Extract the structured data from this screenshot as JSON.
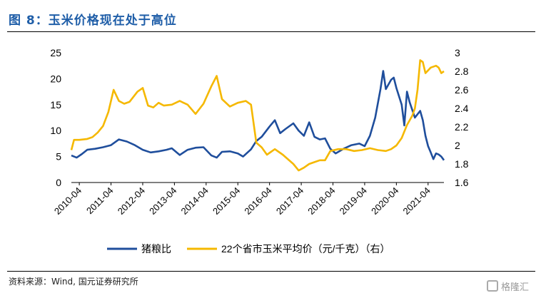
{
  "figure": {
    "title": "图 8：玉米价格现在处于高位",
    "source": "资料来源：Wind, 国元证券研究所",
    "watermark": "格隆汇"
  },
  "chart_data": {
    "type": "line",
    "x_ticks": [
      "2010-04",
      "2011-04",
      "2012-04",
      "2013-04",
      "2014-04",
      "2015-04",
      "2016-04",
      "2017-04",
      "2018-04",
      "2019-04",
      "2020-04",
      "2021-04"
    ],
    "y_left": {
      "min": 0,
      "max": 25,
      "ticks": [
        0,
        5,
        10,
        15,
        20,
        25
      ]
    },
    "y_right": {
      "min": 1.6,
      "max": 3.0,
      "ticks": [
        "1.6",
        "1.8",
        "2",
        "2.2",
        "2.4",
        "2.6",
        "2.8",
        "3"
      ]
    },
    "series": [
      {
        "name": "猪粮比",
        "axis": "left",
        "color": "#1f4e9c",
        "points": [
          [
            "2010-01",
            5.2
          ],
          [
            "2010-03",
            4.8
          ],
          [
            "2010-05",
            5.5
          ],
          [
            "2010-07",
            6.3
          ],
          [
            "2010-10",
            6.5
          ],
          [
            "2011-01",
            6.8
          ],
          [
            "2011-04",
            7.2
          ],
          [
            "2011-07",
            8.3
          ],
          [
            "2011-10",
            7.9
          ],
          [
            "2012-01",
            7.2
          ],
          [
            "2012-04",
            6.3
          ],
          [
            "2012-07",
            5.8
          ],
          [
            "2012-10",
            6.0
          ],
          [
            "2013-01",
            6.3
          ],
          [
            "2013-03",
            6.6
          ],
          [
            "2013-06",
            5.3
          ],
          [
            "2013-09",
            6.3
          ],
          [
            "2013-12",
            6.7
          ],
          [
            "2014-03",
            6.8
          ],
          [
            "2014-06",
            5.2
          ],
          [
            "2014-08",
            4.8
          ],
          [
            "2014-10",
            5.9
          ],
          [
            "2015-01",
            6.0
          ],
          [
            "2015-04",
            5.6
          ],
          [
            "2015-06",
            5.0
          ],
          [
            "2015-09",
            6.4
          ],
          [
            "2015-11",
            8.0
          ],
          [
            "2016-01",
            8.8
          ],
          [
            "2016-04",
            10.8
          ],
          [
            "2016-06",
            12.0
          ],
          [
            "2016-08",
            9.5
          ],
          [
            "2016-10",
            10.3
          ],
          [
            "2017-01",
            11.4
          ],
          [
            "2017-03",
            10.0
          ],
          [
            "2017-05",
            9.0
          ],
          [
            "2017-07",
            11.6
          ],
          [
            "2017-09",
            8.8
          ],
          [
            "2017-11",
            8.3
          ],
          [
            "2018-01",
            8.5
          ],
          [
            "2018-03",
            6.5
          ],
          [
            "2018-05",
            5.6
          ],
          [
            "2018-08",
            6.5
          ],
          [
            "2018-11",
            7.2
          ],
          [
            "2019-02",
            7.5
          ],
          [
            "2019-04",
            7.0
          ],
          [
            "2019-06",
            9.0
          ],
          [
            "2019-08",
            12.5
          ],
          [
            "2019-10",
            18.0
          ],
          [
            "2019-11",
            21.5
          ],
          [
            "2019-12",
            18.0
          ],
          [
            "2020-02",
            19.8
          ],
          [
            "2020-03",
            20.2
          ],
          [
            "2020-04",
            18.2
          ],
          [
            "2020-06",
            15.0
          ],
          [
            "2020-07",
            11.0
          ],
          [
            "2020-08",
            17.5
          ],
          [
            "2020-09",
            15.5
          ],
          [
            "2020-11",
            12.5
          ],
          [
            "2021-01",
            13.8
          ],
          [
            "2021-02",
            12.0
          ],
          [
            "2021-03",
            9.0
          ],
          [
            "2021-04",
            7.0
          ],
          [
            "2021-05",
            5.8
          ],
          [
            "2021-06",
            4.5
          ],
          [
            "2021-07",
            5.6
          ],
          [
            "2021-08",
            5.4
          ],
          [
            "2021-09",
            5.0
          ],
          [
            "2021-10",
            4.3
          ]
        ]
      },
      {
        "name": "22个省市玉米平均价（元/千克）（右）",
        "axis": "right",
        "color": "#f5b800",
        "points": [
          [
            "2010-01",
            1.95
          ],
          [
            "2010-02",
            2.06
          ],
          [
            "2010-04",
            2.06
          ],
          [
            "2010-07",
            2.07
          ],
          [
            "2010-09",
            2.09
          ],
          [
            "2010-11",
            2.14
          ],
          [
            "2011-01",
            2.21
          ],
          [
            "2011-03",
            2.36
          ],
          [
            "2011-05",
            2.6
          ],
          [
            "2011-07",
            2.48
          ],
          [
            "2011-09",
            2.45
          ],
          [
            "2011-11",
            2.47
          ],
          [
            "2012-02",
            2.58
          ],
          [
            "2012-04",
            2.62
          ],
          [
            "2012-06",
            2.43
          ],
          [
            "2012-08",
            2.41
          ],
          [
            "2012-10",
            2.46
          ],
          [
            "2012-12",
            2.43
          ],
          [
            "2013-03",
            2.44
          ],
          [
            "2013-06",
            2.48
          ],
          [
            "2013-09",
            2.44
          ],
          [
            "2013-12",
            2.34
          ],
          [
            "2014-03",
            2.45
          ],
          [
            "2014-06",
            2.64
          ],
          [
            "2014-08",
            2.75
          ],
          [
            "2014-10",
            2.5
          ],
          [
            "2015-01",
            2.42
          ],
          [
            "2015-04",
            2.46
          ],
          [
            "2015-07",
            2.48
          ],
          [
            "2015-09",
            2.44
          ],
          [
            "2015-11",
            2.03
          ],
          [
            "2016-01",
            1.98
          ],
          [
            "2016-03",
            1.9
          ],
          [
            "2016-06",
            1.96
          ],
          [
            "2016-09",
            1.9
          ],
          [
            "2016-11",
            1.85
          ],
          [
            "2017-01",
            1.8
          ],
          [
            "2017-03",
            1.73
          ],
          [
            "2017-05",
            1.76
          ],
          [
            "2017-07",
            1.8
          ],
          [
            "2017-09",
            1.82
          ],
          [
            "2017-11",
            1.84
          ],
          [
            "2018-01",
            1.84
          ],
          [
            "2018-03",
            1.94
          ],
          [
            "2018-06",
            1.96
          ],
          [
            "2018-09",
            1.96
          ],
          [
            "2018-12",
            1.94
          ],
          [
            "2019-03",
            1.95
          ],
          [
            "2019-06",
            1.97
          ],
          [
            "2019-09",
            1.95
          ],
          [
            "2019-12",
            1.94
          ],
          [
            "2020-02",
            1.96
          ],
          [
            "2020-04",
            2.0
          ],
          [
            "2020-06",
            2.08
          ],
          [
            "2020-08",
            2.22
          ],
          [
            "2020-10",
            2.32
          ],
          [
            "2020-11",
            2.4
          ],
          [
            "2020-12",
            2.6
          ],
          [
            "2021-01",
            2.92
          ],
          [
            "2021-02",
            2.9
          ],
          [
            "2021-03",
            2.78
          ],
          [
            "2021-05",
            2.84
          ],
          [
            "2021-07",
            2.86
          ],
          [
            "2021-08",
            2.84
          ],
          [
            "2021-09",
            2.78
          ],
          [
            "2021-10",
            2.8
          ]
        ]
      }
    ],
    "legend": {
      "position": "bottom"
    }
  }
}
